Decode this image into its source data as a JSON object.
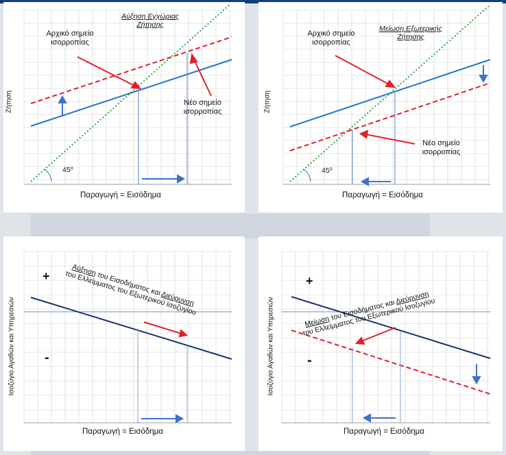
{
  "colors": {
    "demand_line": "#1f78c8",
    "new_demand": "#e0212a",
    "line45": "#27a844",
    "bal_line": "#1c2f6b",
    "grid": "#cfcfcf",
    "arrow_blue": "#3d72c6",
    "arrow_red": "#e0212a"
  },
  "panel1": {
    "title": "Αύξηση Εγχώριας Ζήτησης",
    "initial_label": "Αρχικό σημείο ισορροπίας",
    "new_label": "Νέο σημείο ισορροπίας",
    "ylabel": "Ζήτηση",
    "xlabel": "Παραγωγή = Εισόδημα",
    "angle": "45⁰"
  },
  "panel2": {
    "title": "Μείωση Εξωτερικής Ζήτησης",
    "initial_label": "Αρχικό σημείο ισορροπίας",
    "new_label": "Νέο σημείο ισορροπίας",
    "ylabel": "Ζήτηση",
    "xlabel": "Παραγωγή = Εισόδημα",
    "angle": "45⁰"
  },
  "panel3": {
    "caption_part1": "Αύξηση",
    "caption_part2": " του Εισοδήματος και ",
    "caption_part3": "Διεύρυνση",
    "caption_line2": "του Ελλείμματος του Εξωτερικού Ισοζυγίου",
    "plus": "+",
    "minus": "-",
    "ylabel": "Ισοζύγιο Αγαθών και Υπηρεσιών",
    "xlabel": "Παραγωγή = Εισόδημα"
  },
  "panel4": {
    "caption_part1": "Μείωση",
    "caption_part2": " του Εισοδήματος και ",
    "caption_part3": "Διεύρυνση",
    "caption_line2": "του Ελλείμματος του Εξωτερικού Ισοζυγίου",
    "plus": "+",
    "minus": "-",
    "ylabel": "Ισοζύγιο Αγαθών και Υπηρεσιών",
    "xlabel": "Παραγωγή = Εισόδημα"
  }
}
